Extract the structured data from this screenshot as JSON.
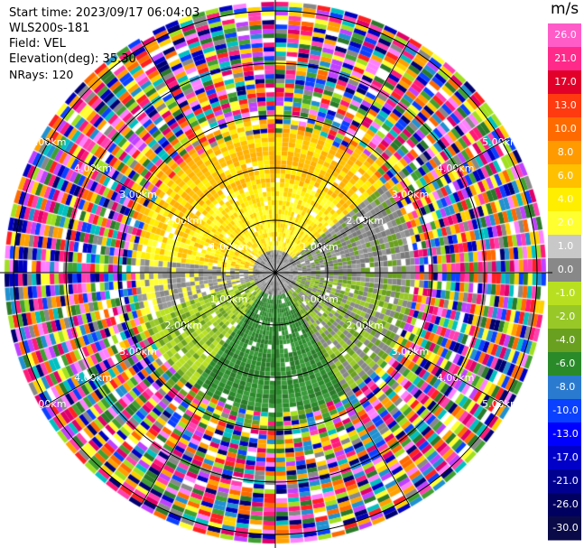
{
  "info": {
    "start_time": "Start time: 2023/09/17 06:04:03",
    "site": "WLS200s-181",
    "field": "Field: VEL",
    "elevation": "Elevation(deg): 35.30",
    "nrays": "NRays: 120"
  },
  "rings": [
    {
      "label_upper": "1.00km",
      "label_lower": "1.00km"
    },
    {
      "label_upper": "2.00km",
      "label_lower": "2.00km"
    },
    {
      "label_upper": "3.00km",
      "label_lower": "3.00km"
    },
    {
      "label_upper": "4.00km",
      "label_lower": "4.00km"
    },
    {
      "label_upper": "5.00km",
      "label_lower": "5.00km"
    }
  ],
  "colorbar": {
    "unit": "m/s",
    "ticks": [
      "26.0",
      "21.0",
      "17.0",
      "13.0",
      "10.0",
      "8.0",
      "6.0",
      "4.0",
      "2.0",
      "1.0",
      "0.0",
      "-1.0",
      "-2.0",
      "-4.0",
      "-6.0",
      "-8.0",
      "-10.0",
      "-13.0",
      "-17.0",
      "-21.0",
      "-26.0",
      "-30.0"
    ],
    "colors": [
      "#ff5cc8",
      "#ff2a8a",
      "#e0002a",
      "#ff3a10",
      "#ff6a00",
      "#ff9a00",
      "#ffc000",
      "#ffee00",
      "#ffff30",
      "#c8c8c8",
      "#888888",
      "#b8e020",
      "#98c828",
      "#6aa020",
      "#2a8a2a",
      "#2a7ad0",
      "#0a40ff",
      "#0000ff",
      "#0000c8",
      "#000090",
      "#000060",
      "#0a0a48"
    ]
  }
}
